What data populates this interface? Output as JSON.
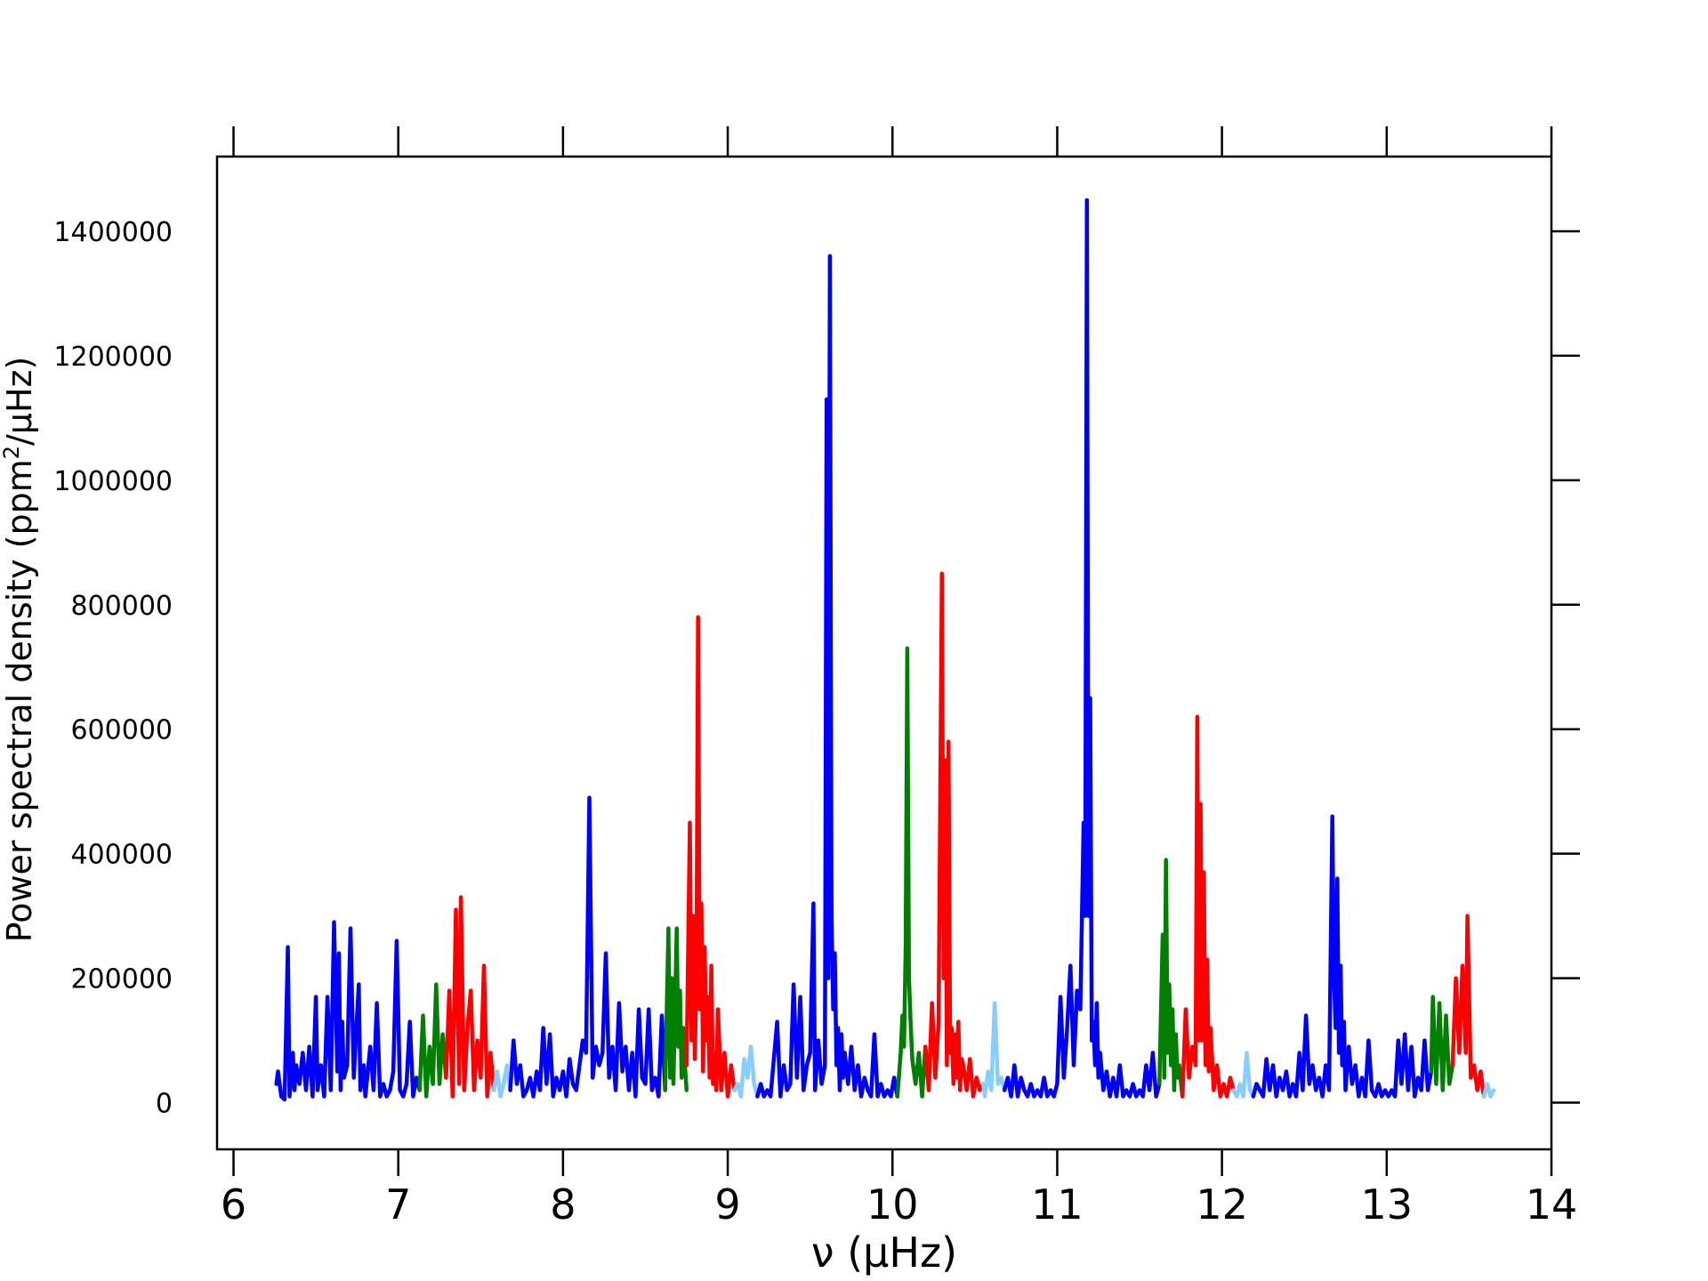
{
  "chart_data": {
    "type": "line",
    "title": "",
    "xlabel": "ν (μHz)",
    "ylabel_main": "Power spectral density (ppm",
    "ylabel_sup": "2",
    "ylabel_tail": "/μHz)",
    "xlim": [
      5.9,
      14.0
    ],
    "ylim": [
      -75000,
      1520000
    ],
    "xticks": [
      "6",
      "7",
      "8",
      "9",
      "10",
      "11",
      "12",
      "13",
      "14"
    ],
    "yticks": [
      "0",
      "200000",
      "400000",
      "600000",
      "800000",
      "1000000",
      "1200000",
      "1400000"
    ],
    "grid": false,
    "legend": "none",
    "colors": {
      "blue": "#0000ff",
      "green": "#007f00",
      "red": "#ff0000",
      "lightblue": "#87cefa"
    },
    "segments": [
      {
        "color": "blue",
        "x": [
          6.26,
          6.27,
          6.29,
          6.31,
          6.33,
          6.34,
          6.36,
          6.37,
          6.38,
          6.4,
          6.42,
          6.44,
          6.46,
          6.48,
          6.5,
          6.51,
          6.53,
          6.55,
          6.57,
          6.59,
          6.61,
          6.63,
          6.64,
          6.65,
          6.66,
          6.67,
          6.69,
          6.71,
          6.73,
          6.76,
          6.77,
          6.79,
          6.8,
          6.83,
          6.85,
          6.87,
          6.89,
          6.91,
          6.93,
          6.95,
          6.97,
          6.99,
          7.01,
          7.03,
          7.05,
          7.07,
          7.09,
          7.11,
          7.13
        ],
        "y": [
          30000,
          50000,
          10000,
          5000,
          250000,
          10000,
          80000,
          20000,
          60000,
          30000,
          80000,
          20000,
          90000,
          10000,
          170000,
          20000,
          60000,
          10000,
          170000,
          20000,
          290000,
          50000,
          240000,
          20000,
          130000,
          40000,
          60000,
          280000,
          40000,
          190000,
          20000,
          60000,
          10000,
          90000,
          20000,
          160000,
          10000,
          30000,
          10000,
          20000,
          50000,
          260000,
          20000,
          10000,
          30000,
          130000,
          10000,
          40000,
          20000
        ]
      },
      {
        "color": "green",
        "x": [
          7.13,
          7.15,
          7.17,
          7.19,
          7.21,
          7.23,
          7.25,
          7.27,
          7.29
        ],
        "y": [
          20000,
          140000,
          10000,
          90000,
          30000,
          190000,
          30000,
          110000,
          40000
        ]
      },
      {
        "color": "red",
        "x": [
          7.29,
          7.31,
          7.33,
          7.35,
          7.37,
          7.38,
          7.4,
          7.42,
          7.44,
          7.46,
          7.48,
          7.5,
          7.52,
          7.54,
          7.56,
          7.58
        ],
        "y": [
          40000,
          180000,
          10000,
          310000,
          30000,
          330000,
          20000,
          120000,
          180000,
          20000,
          100000,
          40000,
          220000,
          10000,
          80000,
          20000
        ]
      },
      {
        "color": "lightblue",
        "x": [
          7.58,
          7.6,
          7.62,
          7.64,
          7.66,
          7.68
        ],
        "y": [
          20000,
          50000,
          10000,
          30000,
          60000,
          20000
        ]
      },
      {
        "color": "blue",
        "x": [
          7.68,
          7.7,
          7.72,
          7.74,
          7.76,
          7.78,
          7.8,
          7.82,
          7.84,
          7.86,
          7.88,
          7.9,
          7.92,
          7.94,
          7.96,
          7.98,
          8.0,
          8.02,
          8.04,
          8.06,
          8.08,
          8.1,
          8.12,
          8.14,
          8.16,
          8.18,
          8.2,
          8.22,
          8.24,
          8.26,
          8.28,
          8.3,
          8.32,
          8.34,
          8.36,
          8.38,
          8.4,
          8.42,
          8.44,
          8.46,
          8.48,
          8.5,
          8.52,
          8.54,
          8.56,
          8.58,
          8.6,
          8.62
        ],
        "y": [
          20000,
          100000,
          30000,
          60000,
          10000,
          20000,
          40000,
          10000,
          50000,
          20000,
          120000,
          30000,
          110000,
          10000,
          40000,
          20000,
          50000,
          10000,
          70000,
          30000,
          20000,
          60000,
          100000,
          80000,
          490000,
          40000,
          90000,
          60000,
          80000,
          240000,
          40000,
          90000,
          20000,
          160000,
          50000,
          90000,
          20000,
          80000,
          10000,
          150000,
          40000,
          30000,
          150000,
          20000,
          40000,
          10000,
          140000,
          20000
        ]
      },
      {
        "color": "green",
        "x": [
          8.62,
          8.64,
          8.65,
          8.66,
          8.67,
          8.68,
          8.69,
          8.7,
          8.71,
          8.72,
          8.73,
          8.74,
          8.75
        ],
        "y": [
          20000,
          280000,
          40000,
          200000,
          30000,
          150000,
          280000,
          90000,
          180000,
          40000,
          120000,
          60000,
          20000
        ]
      },
      {
        "color": "red",
        "x": [
          8.75,
          8.77,
          8.78,
          8.79,
          8.8,
          8.81,
          8.82,
          8.83,
          8.84,
          8.85,
          8.86,
          8.87,
          8.88,
          8.89,
          8.9,
          8.91,
          8.92,
          8.93,
          8.94,
          8.96,
          8.98,
          9.0,
          9.02,
          9.04
        ],
        "y": [
          60000,
          450000,
          100000,
          300000,
          70000,
          200000,
          780000,
          150000,
          320000,
          50000,
          250000,
          100000,
          170000,
          40000,
          220000,
          30000,
          80000,
          20000,
          150000,
          20000,
          80000,
          10000,
          60000,
          20000
        ]
      },
      {
        "color": "lightblue",
        "x": [
          9.04,
          9.06,
          9.08,
          9.1,
          9.12,
          9.14,
          9.16,
          9.18
        ],
        "y": [
          20000,
          30000,
          10000,
          70000,
          40000,
          90000,
          30000,
          10000
        ]
      },
      {
        "color": "blue",
        "x": [
          9.18,
          9.2,
          9.22,
          9.24,
          9.26,
          9.28,
          9.3,
          9.32,
          9.34,
          9.36,
          9.38,
          9.4,
          9.42,
          9.44,
          9.46,
          9.48,
          9.5,
          9.52,
          9.53,
          9.55,
          9.57,
          9.59,
          9.6,
          9.61,
          9.62,
          9.63,
          9.64,
          9.65,
          9.66,
          9.67,
          9.68,
          9.69,
          9.7,
          9.71,
          9.73,
          9.75,
          9.77,
          9.79,
          9.81,
          9.83,
          9.85,
          9.87,
          9.89,
          9.91,
          9.93,
          9.95,
          9.97,
          9.99,
          10.01,
          10.03
        ],
        "y": [
          10000,
          30000,
          10000,
          20000,
          10000,
          70000,
          130000,
          10000,
          60000,
          20000,
          30000,
          190000,
          40000,
          170000,
          20000,
          60000,
          80000,
          320000,
          20000,
          100000,
          30000,
          60000,
          1130000,
          200000,
          1360000,
          300000,
          150000,
          240000,
          60000,
          120000,
          20000,
          110000,
          40000,
          80000,
          30000,
          90000,
          20000,
          60000,
          10000,
          40000,
          20000,
          10000,
          110000,
          10000,
          30000,
          10000,
          20000,
          10000,
          40000,
          10000
        ]
      },
      {
        "color": "green",
        "x": [
          10.03,
          10.05,
          10.06,
          10.07,
          10.08,
          10.09,
          10.1,
          10.11,
          10.12,
          10.13,
          10.14,
          10.16,
          10.18,
          10.2
        ],
        "y": [
          10000,
          80000,
          140000,
          90000,
          250000,
          730000,
          200000,
          130000,
          70000,
          50000,
          30000,
          80000,
          10000,
          90000
        ]
      },
      {
        "color": "red",
        "x": [
          10.2,
          10.22,
          10.24,
          10.26,
          10.28,
          10.3,
          10.31,
          10.32,
          10.33,
          10.34,
          10.35,
          10.36,
          10.37,
          10.38,
          10.39,
          10.4,
          10.41,
          10.42,
          10.43,
          10.45,
          10.47,
          10.49,
          10.51,
          10.53,
          10.55
        ],
        "y": [
          90000,
          20000,
          160000,
          40000,
          130000,
          850000,
          200000,
          550000,
          60000,
          580000,
          80000,
          120000,
          30000,
          110000,
          40000,
          130000,
          20000,
          70000,
          60000,
          20000,
          70000,
          10000,
          40000,
          20000,
          30000
        ]
      },
      {
        "color": "lightblue",
        "x": [
          10.55,
          10.56,
          10.58,
          10.6,
          10.62,
          10.64,
          10.66,
          10.68
        ],
        "y": [
          30000,
          10000,
          50000,
          20000,
          160000,
          30000,
          40000,
          20000
        ]
      },
      {
        "color": "blue",
        "x": [
          10.68,
          10.7,
          10.72,
          10.74,
          10.76,
          10.78,
          10.8,
          10.82,
          10.84,
          10.86,
          10.88,
          10.9,
          10.92,
          10.94,
          10.96,
          10.98,
          11.0,
          11.02,
          11.04,
          11.06,
          11.08,
          11.1,
          11.12,
          11.14,
          11.16,
          11.17,
          11.18,
          11.19,
          11.2,
          11.21,
          11.22,
          11.23,
          11.24,
          11.25,
          11.26,
          11.28,
          11.3,
          11.32,
          11.34,
          11.36,
          11.38,
          11.4,
          11.42,
          11.44,
          11.46,
          11.48,
          11.5,
          11.52,
          11.54,
          11.56,
          11.58,
          11.6,
          11.62
        ],
        "y": [
          20000,
          40000,
          10000,
          60000,
          10000,
          40000,
          20000,
          10000,
          30000,
          10000,
          20000,
          10000,
          40000,
          10000,
          20000,
          10000,
          30000,
          170000,
          40000,
          120000,
          220000,
          60000,
          180000,
          150000,
          450000,
          300000,
          1450000,
          300000,
          650000,
          100000,
          130000,
          60000,
          160000,
          40000,
          80000,
          20000,
          50000,
          10000,
          40000,
          10000,
          60000,
          10000,
          20000,
          10000,
          30000,
          10000,
          20000,
          10000,
          60000,
          20000,
          80000,
          10000,
          30000
        ]
      },
      {
        "color": "green",
        "x": [
          11.62,
          11.64,
          11.65,
          11.66,
          11.67,
          11.68,
          11.69,
          11.7,
          11.71,
          11.72,
          11.73,
          11.74,
          11.76
        ],
        "y": [
          30000,
          270000,
          40000,
          390000,
          80000,
          190000,
          60000,
          150000,
          20000,
          110000,
          40000,
          60000,
          10000
        ]
      },
      {
        "color": "red",
        "x": [
          11.76,
          11.78,
          11.8,
          11.82,
          11.84,
          11.85,
          11.86,
          11.87,
          11.88,
          11.89,
          11.9,
          11.91,
          11.92,
          11.93,
          11.95,
          11.97,
          11.99,
          12.01,
          12.03,
          12.05,
          12.07
        ],
        "y": [
          10000,
          150000,
          40000,
          90000,
          60000,
          620000,
          100000,
          480000,
          100000,
          370000,
          60000,
          230000,
          50000,
          120000,
          20000,
          60000,
          10000,
          30000,
          10000,
          40000,
          20000
        ]
      },
      {
        "color": "lightblue",
        "x": [
          12.07,
          12.09,
          12.11,
          12.13,
          12.15,
          12.17,
          12.19
        ],
        "y": [
          20000,
          10000,
          30000,
          10000,
          80000,
          20000,
          10000
        ]
      },
      {
        "color": "blue",
        "x": [
          12.19,
          12.21,
          12.23,
          12.25,
          12.27,
          12.29,
          12.31,
          12.33,
          12.35,
          12.37,
          12.39,
          12.41,
          12.43,
          12.45,
          12.47,
          12.49,
          12.51,
          12.53,
          12.55,
          12.57,
          12.59,
          12.61,
          12.63,
          12.65,
          12.67,
          12.68,
          12.69,
          12.7,
          12.71,
          12.72,
          12.73,
          12.74,
          12.75,
          12.77,
          12.79,
          12.81,
          12.83,
          12.85,
          12.87,
          12.89,
          12.91,
          12.93,
          12.95,
          12.97,
          12.99,
          13.01,
          13.03,
          13.05,
          13.07,
          13.09,
          13.11,
          13.13,
          13.15,
          13.17,
          13.19,
          13.21,
          13.23,
          13.25,
          13.27
        ],
        "y": [
          10000,
          30000,
          20000,
          10000,
          70000,
          20000,
          60000,
          10000,
          40000,
          20000,
          50000,
          10000,
          30000,
          10000,
          80000,
          20000,
          140000,
          30000,
          60000,
          20000,
          40000,
          10000,
          60000,
          20000,
          460000,
          200000,
          120000,
          360000,
          80000,
          220000,
          60000,
          130000,
          20000,
          90000,
          30000,
          60000,
          10000,
          40000,
          10000,
          100000,
          20000,
          10000,
          30000,
          10000,
          20000,
          10000,
          20000,
          10000,
          100000,
          30000,
          110000,
          20000,
          90000,
          10000,
          40000,
          20000,
          100000,
          20000,
          50000
        ]
      },
      {
        "color": "green",
        "x": [
          13.27,
          13.28,
          13.3,
          13.32,
          13.34,
          13.36,
          13.38,
          13.4
        ],
        "y": [
          50000,
          170000,
          30000,
          160000,
          20000,
          140000,
          30000,
          60000
        ]
      },
      {
        "color": "red",
        "x": [
          13.4,
          13.42,
          13.44,
          13.46,
          13.48,
          13.49,
          13.51,
          13.53,
          13.55,
          13.57,
          13.59
        ],
        "y": [
          60000,
          200000,
          80000,
          220000,
          80000,
          300000,
          40000,
          60000,
          20000,
          50000,
          10000
        ]
      },
      {
        "color": "lightblue",
        "x": [
          13.59,
          13.61,
          13.63,
          13.65
        ],
        "y": [
          10000,
          30000,
          10000,
          20000
        ]
      }
    ]
  }
}
